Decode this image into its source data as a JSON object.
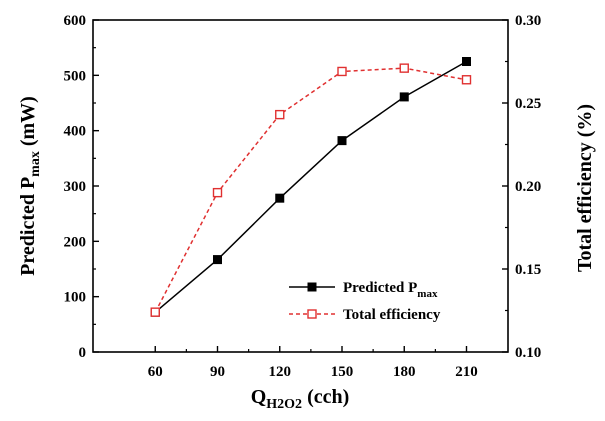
{
  "chart_data": {
    "type": "line",
    "x": [
      60,
      90,
      120,
      150,
      180,
      210
    ],
    "xlim": [
      30,
      230
    ],
    "xticks": [
      60,
      90,
      120,
      150,
      180,
      210
    ],
    "xlabel": {
      "main": "Q",
      "sub": "H2O2",
      "unit": " (cch)"
    },
    "ylabel_left": {
      "main": "Predicted P",
      "sub": "max",
      "unit": " (mW)"
    },
    "ylabel_right": "Total efficiency (%)",
    "ylim_left": [
      0,
      600
    ],
    "yticks_left": [
      "0",
      "100",
      "200",
      "300",
      "400",
      "500",
      "600"
    ],
    "ylim_right": [
      0.1,
      0.3
    ],
    "yticks_right": [
      "0.10",
      "0.15",
      "0.20",
      "0.25",
      "0.30"
    ],
    "grid": false,
    "legend_position": "bottom-right",
    "series": [
      {
        "name": "Predicted P",
        "name_sub": "max",
        "axis": "left",
        "values": [
          72,
          167,
          278,
          382,
          461,
          525
        ],
        "color": "#000000",
        "line_style": "solid",
        "marker": "filled-square"
      },
      {
        "name": "Total efficiency",
        "name_sub": "",
        "axis": "right",
        "values": [
          0.124,
          0.196,
          0.243,
          0.269,
          0.271,
          0.264
        ],
        "color": "#e03030",
        "line_style": "dashed",
        "marker": "open-square"
      }
    ]
  }
}
